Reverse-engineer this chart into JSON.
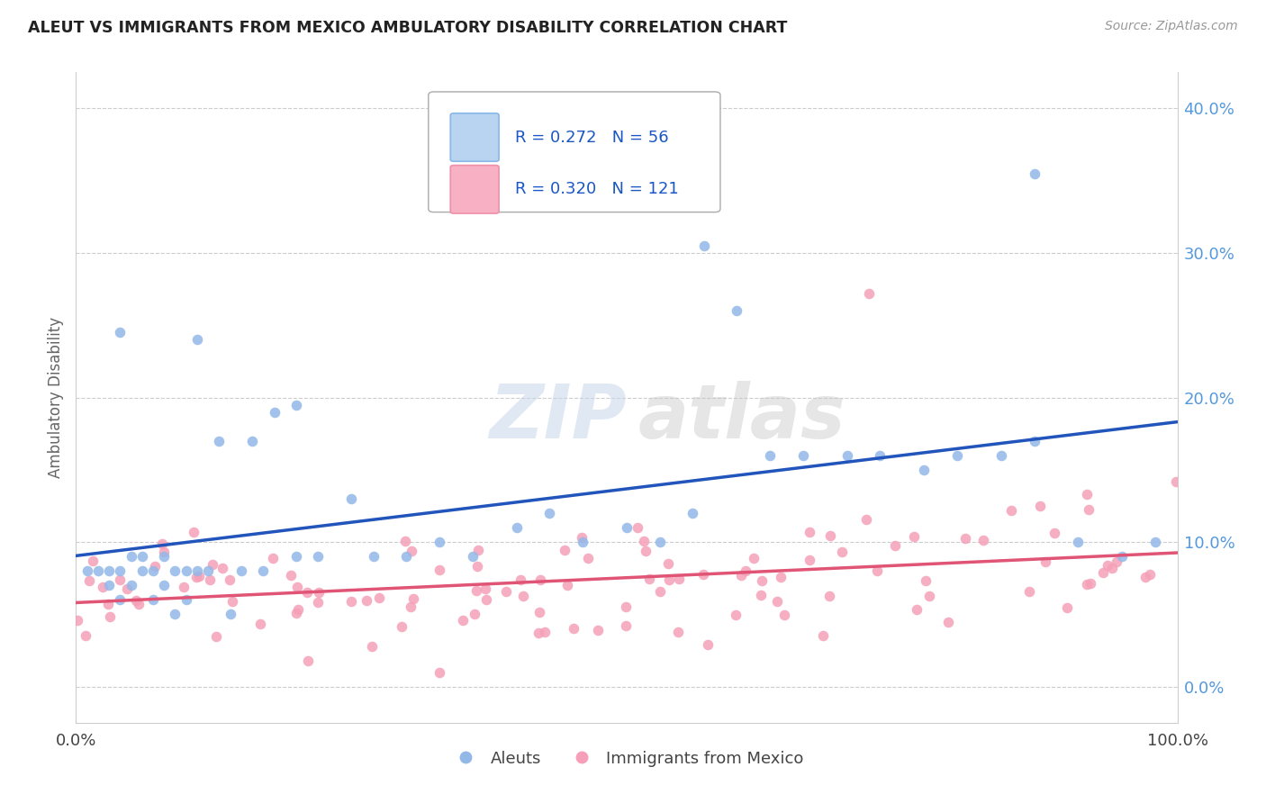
{
  "title": "ALEUT VS IMMIGRANTS FROM MEXICO AMBULATORY DISABILITY CORRELATION CHART",
  "source": "Source: ZipAtlas.com",
  "ylabel": "Ambulatory Disability",
  "xlim": [
    0.0,
    1.0
  ],
  "ylim": [
    -0.025,
    0.425
  ],
  "aleut_R": 0.272,
  "aleut_N": 56,
  "mexico_R": 0.32,
  "mexico_N": 121,
  "aleut_color": "#92b8e8",
  "mexico_color": "#f5a0b8",
  "aleut_line_color": "#2255bb",
  "mexico_line_color": "#e05575",
  "background_color": "#ffffff",
  "legend_color": "#1a56c4",
  "grid_color": "#cccccc",
  "ytick_color": "#5599dd",
  "spine_color": "#cccccc"
}
